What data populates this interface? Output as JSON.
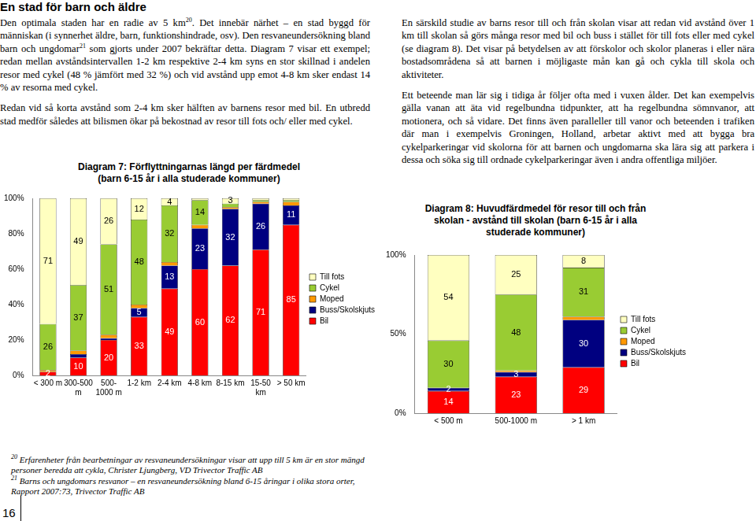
{
  "heading": "En stad för barn och äldre",
  "left_text": [
    [
      "Den optimala staden har en radie av 5 km",
      {
        "sup": "20"
      },
      ". Det innebär närhet – en stad byggd för människan (i synnerhet äldre, barn, funktionshindrade, osv). Den resvaneundersökning bland barn och ungdomar",
      {
        "sup": "21"
      },
      " som gjorts under 2007 bekräftar detta. Diagram 7 visar ett exempel; redan mellan avståndsintervallen 1-2 km respektive 2-4 km syns en stor skillnad i andelen resor med cykel (48 % jämfört med 32 %) och vid avstånd upp emot 4-8 km sker endast 14 % av resorna med cykel."
    ],
    [
      "Redan vid så korta avstånd som 2-4 km sker hälften av barnens resor med bil. En utbredd stad medför således att bilismen ökar på bekostnad av resor till fots och/ eller med cykel."
    ]
  ],
  "right_text": [
    [
      "En särskild studie av barns resor till och från skolan visar att redan vid avstånd över 1 km till skolan så görs många resor med bil och buss i stället för till fots eller med cykel (se diagram 8). Det visar på betydelsen av att förskolor och skolor planeras i eller nära bostadsområdena så att barnen i möjligaste mån kan gå och cykla till skola och aktiviteter."
    ],
    [
      "Ett beteende man lär sig i tidiga år följer ofta med i vuxen ålder. Det kan exempelvis gälla vanan att äta vid regelbundna tidpunkter, att ha regelbundna sömnvanor, att motionera, och så vidare. Det finns även paralleller till vanor och beteenden i trafiken där man i exempelvis Groningen, Holland, arbetar aktivt med att bygga bra cykelparkeringar vid skolorna för att barnen och ungdomarna ska lära sig att parkera i dessa och söka sig till ordnade cykelparkeringar även i andra offentliga miljöer."
    ]
  ],
  "chart_data": [
    {
      "type": "bar",
      "stacked": true,
      "title": [
        "Diagram 7: Förflyttningarnas längd per färdmedel",
        "(barn 6-15 år i alla studerade kommuner)"
      ],
      "categories": [
        "< 300 m",
        [
          "300-500",
          "m"
        ],
        [
          "500-",
          "1000 m"
        ],
        "1-2 km",
        "2-4 km",
        "4-8 km",
        "8-15 km",
        [
          "15-50",
          "km"
        ],
        "> 50 km"
      ],
      "series": [
        {
          "name": "Bil",
          "color": "#ff0000",
          "values": [
            2,
            10,
            20,
            33,
            49,
            60,
            62,
            71,
            85
          ],
          "value_labels": [
            "2",
            "10",
            "20",
            "33",
            "49",
            "60",
            "62",
            "71",
            "85"
          ]
        },
        {
          "name": "Buss/Skolskjuts",
          "color": "#000080",
          "values": [
            0,
            2,
            1,
            5,
            13,
            23,
            32,
            26,
            11
          ],
          "value_labels": [
            null,
            null,
            null,
            "5",
            "13",
            "23",
            "32",
            "26",
            "11"
          ]
        },
        {
          "name": "Moped",
          "color": "#ff9900",
          "values": [
            1,
            2,
            2,
            2,
            2,
            2,
            1,
            1,
            2
          ],
          "value_labels": [
            null,
            null,
            null,
            null,
            null,
            null,
            null,
            null,
            null
          ]
        },
        {
          "name": "Cykel",
          "color": "#99cc33",
          "values": [
            26,
            37,
            51,
            48,
            32,
            14,
            2,
            1,
            1
          ],
          "value_labels": [
            "26",
            "37",
            "51",
            "48",
            "32",
            "14",
            null,
            null,
            null
          ]
        },
        {
          "name": "Till fots",
          "color": "#ffffc0",
          "values": [
            71,
            49,
            26,
            12,
            4,
            1,
            3,
            1,
            1
          ],
          "value_labels": [
            "71",
            "49",
            "26",
            "12",
            "4",
            null,
            "3",
            null,
            null
          ]
        }
      ],
      "ylim": [
        0,
        100
      ],
      "yticks": [
        {
          "value": 0,
          "label": "0%"
        },
        {
          "value": 20,
          "label": "20%"
        },
        {
          "value": 40,
          "label": "40%"
        },
        {
          "value": 60,
          "label": "60%"
        },
        {
          "value": 80,
          "label": "80%"
        },
        {
          "value": 100,
          "label": "100%"
        }
      ],
      "grid": false,
      "legend": "right",
      "data_labels": true
    },
    {
      "type": "bar",
      "stacked": true,
      "title": [
        "Diagram 8: Huvudfärdmedel för resor till och från",
        "skolan - avstånd till skolan (barn 6-15 år i alla",
        "studerade kommuner)"
      ],
      "categories": [
        "< 500 m",
        "500-1000 m",
        "> 1 km"
      ],
      "series": [
        {
          "name": "Bil",
          "color": "#ff0000",
          "values": [
            14,
            23,
            29
          ],
          "value_labels": [
            "14",
            "23",
            "29"
          ]
        },
        {
          "name": "Buss/Skolskjuts",
          "color": "#000080",
          "values": [
            2,
            3,
            30
          ],
          "value_labels": [
            "2",
            "3",
            "30"
          ]
        },
        {
          "name": "Moped",
          "color": "#ff9900",
          "values": [
            0,
            1,
            2
          ],
          "value_labels": [
            null,
            null,
            null
          ]
        },
        {
          "name": "Cykel",
          "color": "#99cc33",
          "values": [
            30,
            48,
            31
          ],
          "value_labels": [
            "30",
            "48",
            "31"
          ]
        },
        {
          "name": "Till fots",
          "color": "#ffffc0",
          "values": [
            54,
            25,
            8
          ],
          "value_labels": [
            "54",
            "25",
            "8"
          ]
        }
      ],
      "ylim": [
        0,
        100
      ],
      "yticks": [
        {
          "value": 0,
          "label": "0%"
        },
        {
          "value": 50,
          "label": "50%"
        },
        {
          "value": 100,
          "label": "100%"
        }
      ],
      "grid": false,
      "legend": "right",
      "data_labels": true
    }
  ],
  "footnotes": [
    {
      "number": "20",
      "text": "Erfarenheter från bearbetningar av resvaneundersökningar visar att upp till 5 km är en stor mängd personer beredda att cykla, Christer Ljungberg, VD Trivector Traffic AB"
    },
    {
      "number": "21",
      "text": "Barns och ungdomars resvanor – en resvaneundersökning bland 6-15 åringar i olika stora orter, Rapport 2007:73, Trivector Traffic AB"
    }
  ],
  "page_number": "16"
}
